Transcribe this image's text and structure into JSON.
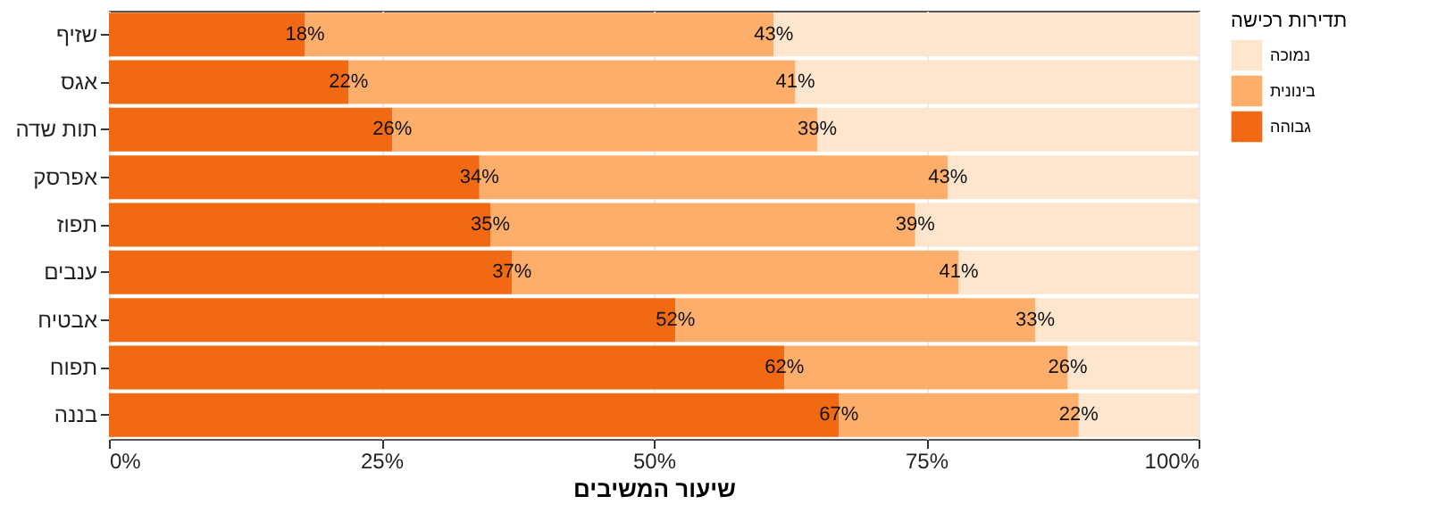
{
  "chart_data": {
    "type": "bar",
    "orientation": "horizontal",
    "stacked": true,
    "xlabel": "שיעור המשיבים",
    "legend_title": "תדירות רכישה",
    "legend": "right",
    "grid": true,
    "categories": [
      "שזיף",
      "אגס",
      "תות שדה",
      "אפרסק",
      "תפוז",
      "ענבים",
      "אבטיח",
      "תפוח",
      "בננה"
    ],
    "xlim": [
      0,
      100
    ],
    "xticks": [
      {
        "value": 0,
        "label": "0%"
      },
      {
        "value": 25,
        "label": "25%"
      },
      {
        "value": 50,
        "label": "50%"
      },
      {
        "value": 75,
        "label": "75%"
      },
      {
        "value": 100,
        "label": "100%"
      }
    ],
    "series": [
      {
        "name": "גבוהה",
        "color": "#f16913",
        "values": [
          18,
          22,
          26,
          34,
          35,
          37,
          52,
          62,
          67
        ],
        "value_labels": [
          "18%",
          "22%",
          "26%",
          "34%",
          "35%",
          "37%",
          "52%",
          "62%",
          "67%"
        ]
      },
      {
        "name": "בינונית",
        "color": "#fdae6b",
        "values": [
          43,
          41,
          39,
          43,
          39,
          41,
          33,
          26,
          22
        ],
        "value_labels": [
          "43%",
          "41%",
          "39%",
          "43%",
          "39%",
          "41%",
          "33%",
          "26%",
          "22%"
        ]
      },
      {
        "name": "נמוכה",
        "color": "#fee6ce",
        "values": [
          39,
          37,
          35,
          23,
          26,
          22,
          15,
          12,
          11
        ]
      }
    ]
  }
}
